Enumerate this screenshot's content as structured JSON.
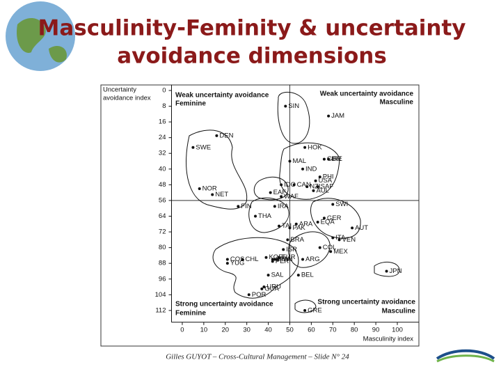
{
  "title": [
    "Masculinity-Feminity & uncertainty",
    "avoidance dimensions"
  ],
  "footer": "Gilles GUYOT – Cross-Cultural Management – Slide N° 24",
  "chart_data": {
    "type": "scatter",
    "y_label": [
      "Uncertainty",
      "avoidance index"
    ],
    "x_label": "Masculinity index",
    "quadrant_labels": {
      "top_left": [
        "Weak uncertainty avoidance",
        "Feminine"
      ],
      "top_right": [
        "Weak uncertainty avoidance",
        "Masculine"
      ],
      "bottom_left": [
        "Strong uncertainty avoidance",
        "Feminine"
      ],
      "bottom_right": [
        "Strong uncertainty avoidance",
        "Masculine"
      ]
    },
    "xlim": [
      -5,
      110
    ],
    "ylim": [
      -3,
      118
    ],
    "y_inverted": true,
    "xticks": [
      0,
      10,
      20,
      30,
      40,
      50,
      60,
      70,
      80,
      90,
      100
    ],
    "yticks": [
      0,
      8,
      16,
      24,
      32,
      40,
      48,
      56,
      64,
      72,
      80,
      88,
      96,
      104,
      112
    ],
    "reference_lines": {
      "x": 50,
      "y": 56
    },
    "color": "#111111",
    "labels": [
      "JAM",
      "SIN",
      "DEN",
      "SWE",
      "HOK",
      "MAL",
      "GBR",
      "IRE",
      "IND",
      "PHI",
      "USA",
      "CAN",
      "NZL",
      "SAF",
      "AUL",
      "IDO",
      "WAF",
      "EAF",
      "NOR",
      "NET",
      "FIN",
      "IRA",
      "SWI",
      "GER",
      "THA",
      "ARA",
      "TAI",
      "PAK",
      "EQA",
      "AUT",
      "ITA",
      "VEN",
      "COL",
      "MEX",
      "BRA",
      "ISR",
      "KOR",
      "FRA",
      "TUR",
      "COS",
      "CHL",
      "SPA",
      "PAN",
      "ARG",
      "PER",
      "YUG",
      "SAL",
      "BEL",
      "JPN",
      "GUA",
      "URU",
      "POR",
      "GRE"
    ],
    "x": [
      68,
      48,
      16,
      5,
      57,
      50,
      66,
      68,
      56,
      64,
      62,
      52,
      58,
      63,
      61,
      46,
      46,
      41,
      8,
      14,
      26,
      43,
      70,
      66,
      34,
      53,
      45,
      50,
      63,
      79,
      70,
      73,
      64,
      69,
      49,
      47,
      39,
      43,
      45,
      21,
      28,
      42,
      44,
      56,
      42,
      21,
      40,
      54,
      95,
      37,
      38,
      31,
      57
    ],
    "y": [
      13,
      8,
      23,
      29,
      29,
      36,
      35,
      35,
      40,
      44,
      46,
      48,
      49,
      49,
      51,
      48,
      54,
      52,
      50,
      53,
      59,
      59,
      58,
      65,
      64,
      68,
      69,
      70,
      67,
      70,
      75,
      76,
      80,
      82,
      76,
      81,
      85,
      86,
      85,
      86,
      86,
      86,
      86,
      86,
      87,
      88,
      94,
      94,
      92,
      101,
      100,
      104,
      112
    ]
  }
}
